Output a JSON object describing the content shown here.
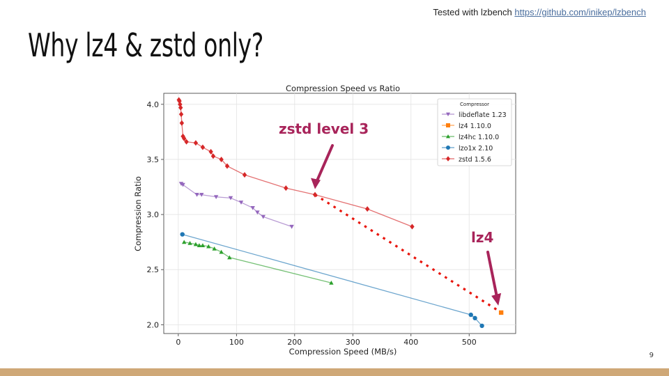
{
  "slide": {
    "credit_text": "Tested with lzbench",
    "credit_link": "https://github.com/inikep/lzbench",
    "title": "Why lz4 & zstd only?",
    "page_number": "9"
  },
  "chart_data": {
    "type": "line",
    "title": "Compression Speed vs Ratio",
    "xlabel": "Compression Speed (MB/s)",
    "ylabel": "Compression Ratio",
    "xlim": [
      -25,
      580
    ],
    "ylim": [
      1.92,
      4.1
    ],
    "xticks": [
      0,
      100,
      200,
      300,
      400,
      500
    ],
    "yticks": [
      2.0,
      2.5,
      3.0,
      3.5,
      4.0
    ],
    "grid": true,
    "legend_title": "Compressor",
    "legend_position": "top-right",
    "series": [
      {
        "name": "libdeflate 1.23",
        "color": "#9467bd",
        "marker": "triangle-down",
        "x": [
          5,
          8,
          32,
          40,
          65,
          90,
          108,
          128,
          136,
          146,
          195
        ],
        "y": [
          3.28,
          3.27,
          3.18,
          3.18,
          3.16,
          3.15,
          3.11,
          3.06,
          3.02,
          2.98,
          2.89
        ]
      },
      {
        "name": "lz4 1.10.0",
        "color": "#ff7f0e",
        "marker": "square",
        "x": [
          555
        ],
        "y": [
          2.11
        ]
      },
      {
        "name": "lz4hc 1.10.0",
        "color": "#2ca02c",
        "marker": "triangle-up",
        "x": [
          10,
          20,
          30,
          36,
          42,
          52,
          62,
          74,
          88,
          263
        ],
        "y": [
          2.75,
          2.74,
          2.73,
          2.72,
          2.72,
          2.71,
          2.69,
          2.66,
          2.61,
          2.38
        ]
      },
      {
        "name": "lzo1x 2.10",
        "color": "#1f77b4",
        "marker": "circle",
        "x": [
          7,
          503,
          510,
          522
        ],
        "y": [
          2.82,
          2.09,
          2.06,
          1.99
        ]
      },
      {
        "name": "zstd 1.5.6",
        "color": "#d62728",
        "marker": "diamond",
        "x": [
          1,
          2,
          3,
          4,
          5,
          6,
          8,
          10,
          14,
          30,
          42,
          56,
          60,
          74,
          84,
          114,
          185,
          235,
          325,
          402
        ],
        "y": [
          4.04,
          4.03,
          4.0,
          3.97,
          3.91,
          3.83,
          3.71,
          3.69,
          3.66,
          3.65,
          3.61,
          3.57,
          3.53,
          3.5,
          3.44,
          3.36,
          3.24,
          3.18,
          3.05,
          2.89
        ]
      }
    ],
    "annotations": [
      {
        "text": "zstd level 3",
        "color": "#a8245a",
        "arrow_to": [
          235,
          3.18
        ]
      },
      {
        "text": "lz4",
        "color": "#a8245a",
        "arrow_to": [
          555,
          2.11
        ]
      }
    ],
    "dotted_line": {
      "color": "#e8150c",
      "from": [
        235,
        3.18
      ],
      "to": [
        555,
        2.11
      ]
    }
  }
}
